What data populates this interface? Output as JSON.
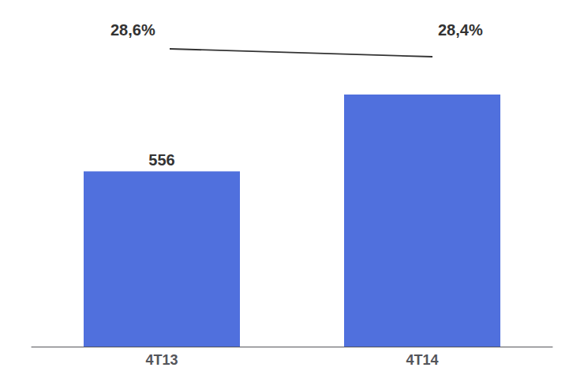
{
  "chart_data": {
    "type": "bar",
    "categories": [
      "4T13",
      "4T14"
    ],
    "values": [
      556,
      800
    ],
    "data_labels": true,
    "value_labels": [
      "556",
      null
    ],
    "annotations": [
      "28,6%",
      "28,4%"
    ],
    "ylim": [
      0,
      1050
    ],
    "tick_labels": "x",
    "grid": false
  }
}
